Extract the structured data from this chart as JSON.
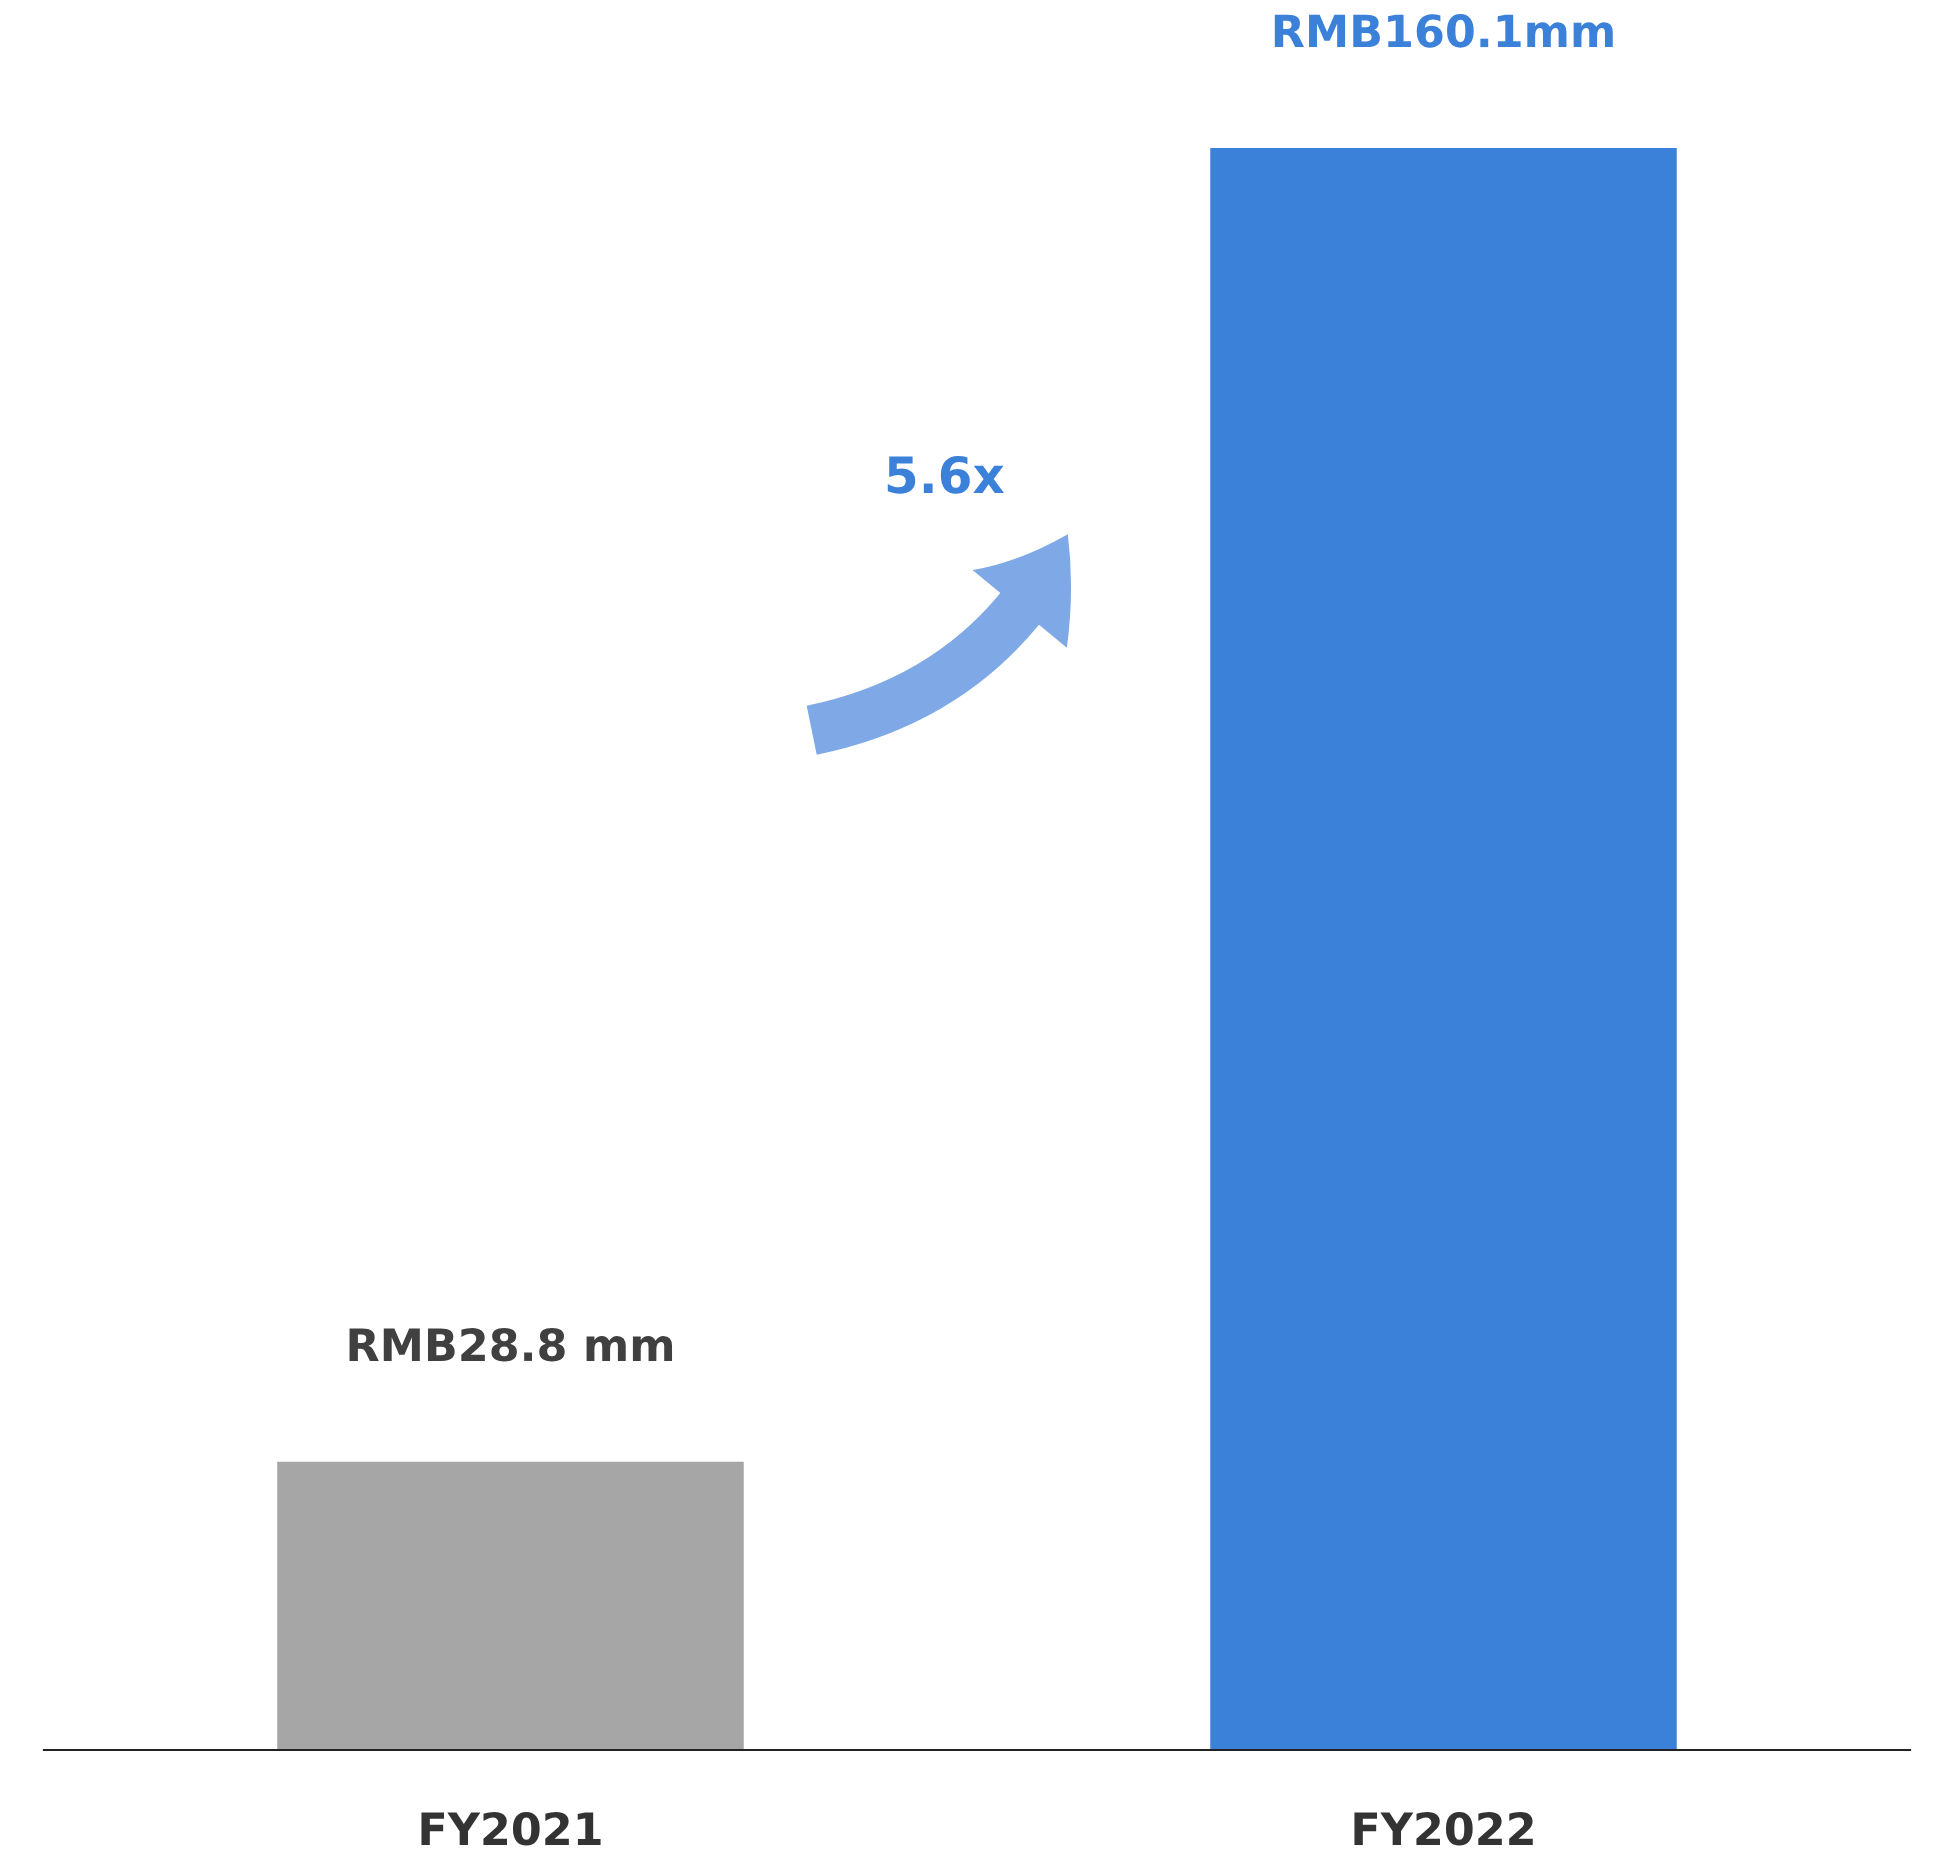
{
  "chart_data": {
    "type": "bar",
    "categories": [
      "FY2021",
      "FY2022"
    ],
    "values": [
      28.8,
      160.1
    ],
    "colors": [
      "#a6a6a6",
      "#3b80d9"
    ],
    "value_labels": [
      "RMB28.8 mm",
      "RMB160.1mm"
    ],
    "tick_labels": "x",
    "grid": false,
    "legend": false,
    "annotations": [
      "5.6x"
    ]
  }
}
